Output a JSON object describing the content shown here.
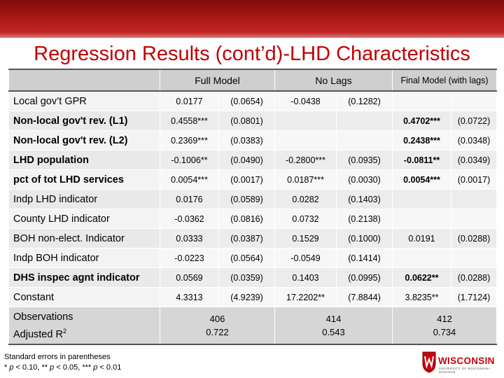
{
  "slide": {
    "title": "Regression Results (cont’d)-LHD Characteristics",
    "footnote_line1": "Standard errors in parentheses",
    "footnote_line2": "* p < 0.10, ** p < 0.05, *** p < 0.01",
    "logo_text": "WISCONSIN",
    "logo_subtext": "UNIVERSITY OF WISCONSIN–MADISON"
  },
  "table": {
    "headers": [
      "Full Model",
      "No Lags",
      "Final Model (with lags)"
    ],
    "rows": [
      {
        "label": "Local gov’t GPR",
        "bold": false,
        "cells": [
          "0.0177",
          "(0.0654)",
          "-0.0438",
          "(0.1282)",
          "",
          ""
        ]
      },
      {
        "label": "Non-local gov't rev. (L1)",
        "bold": true,
        "cells": [
          "0.4558***",
          "(0.0801)",
          "",
          "",
          "0.4702***",
          "(0.0722)"
        ]
      },
      {
        "label": "Non-local gov't rev. (L2)",
        "bold": true,
        "cells": [
          "0.2369***",
          "(0.0383)",
          "",
          "",
          "0.2438***",
          "(0.0348)"
        ]
      },
      {
        "label": "LHD population",
        "bold": true,
        "cells": [
          "-0.1006**",
          "(0.0490)",
          "-0.2800***",
          "(0.0935)",
          "-0.0811**",
          "(0.0349)"
        ]
      },
      {
        "label": "pct of tot LHD services",
        "bold": true,
        "cells": [
          "0.0054***",
          "(0.0017)",
          "0.0187***",
          "(0.0030)",
          "0.0054***",
          "(0.0017)"
        ]
      },
      {
        "label": "Indp LHD indicator",
        "bold": false,
        "cells": [
          "0.0176",
          "(0.0589)",
          "0.0282",
          "(0.1403)",
          "",
          ""
        ]
      },
      {
        "label": "County LHD indicator",
        "bold": false,
        "cells": [
          "-0.0362",
          "(0.0816)",
          "0.0732",
          "(0.2138)",
          "",
          ""
        ]
      },
      {
        "label": "BOH non-elect. Indicator",
        "bold": false,
        "cells": [
          "0.0333",
          "(0.0387)",
          "0.1529",
          "(0.1000)",
          "0.0191",
          "(0.0288)"
        ]
      },
      {
        "label": "Indp BOH indicator",
        "bold": false,
        "cells": [
          "-0.0223",
          "(0.0564)",
          "-0.0549",
          "(0.1414)",
          "",
          ""
        ]
      },
      {
        "label": "DHS inspec agnt indicator",
        "bold": true,
        "cells": [
          "0.0569",
          "(0.0359)",
          "0.1403",
          "(0.0995)",
          "0.0622**",
          "(0.0288)"
        ]
      },
      {
        "label": "Constant",
        "bold": false,
        "cells": [
          "4.3313",
          "(4.9239)",
          "17.2202**",
          "(7.8844)",
          "3.8235**",
          "(1.7124)"
        ]
      }
    ],
    "summary": {
      "label_observations": "Observations",
      "label_r2": "Adjusted R",
      "label_r2_sup": "2",
      "full_model": {
        "observations": "406",
        "adj_r2": "0.722"
      },
      "no_lags": {
        "observations": "414",
        "adj_r2": "0.543"
      },
      "final_model": {
        "observations": "412",
        "adj_r2": "0.734"
      }
    }
  },
  "colors": {
    "title": "#c00000",
    "header_bar": "#b21a1a",
    "brand_red": "#c5050c"
  }
}
